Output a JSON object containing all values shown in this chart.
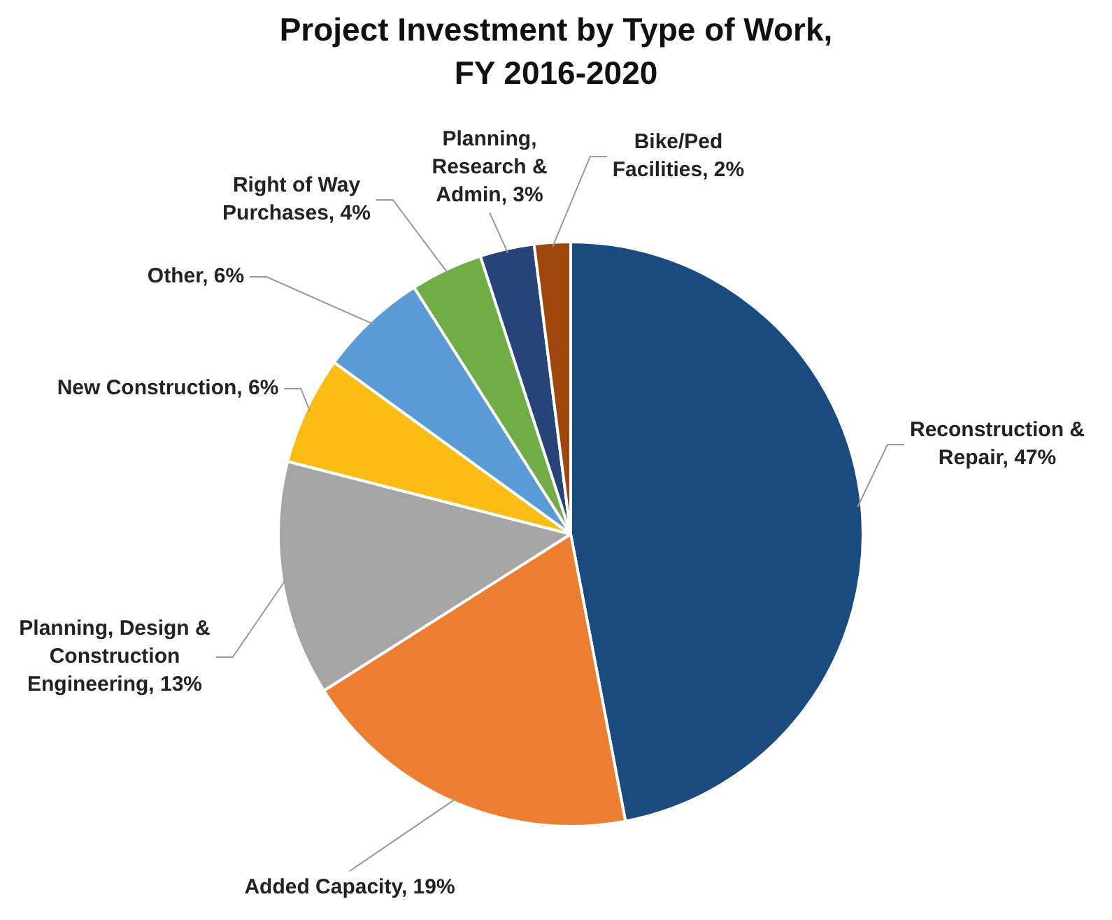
{
  "chart_data": {
    "type": "pie",
    "title": "Project Investment by Type of Work, FY 2016-2020",
    "categories": [
      "Reconstruction & Repair",
      "Added Capacity",
      "Planning, Design & Construction Engineering",
      "New Construction",
      "Other",
      "Right of Way Purchases",
      "Planning, Research & Admin",
      "Bike/Ped Facilities"
    ],
    "values": [
      47,
      19,
      13,
      6,
      6,
      4,
      3,
      2
    ],
    "value_labels": [
      "47%",
      "19%",
      "13%",
      "6%",
      "6%",
      "4%",
      "3%",
      "2%"
    ],
    "colors": [
      "#1a4a7e",
      "#ed7d31",
      "#a5a5a5",
      "#fbbd13",
      "#5b9bd5",
      "#70ad47",
      "#264478",
      "#9e480e"
    ],
    "legend": false
  }
}
